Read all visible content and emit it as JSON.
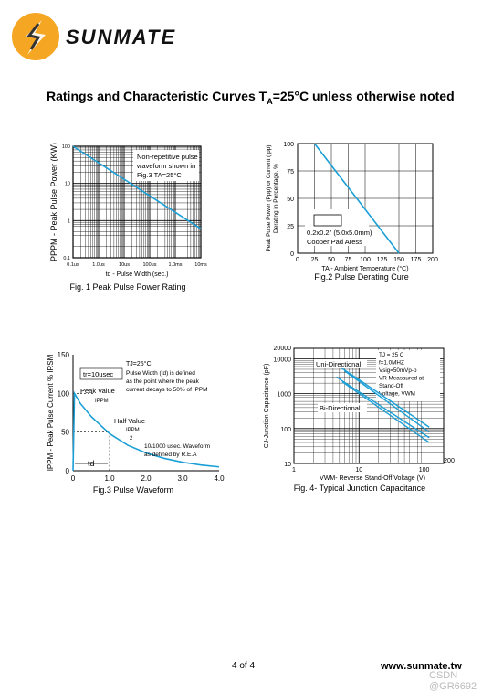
{
  "brand": {
    "name": "SUNMATE"
  },
  "heading": {
    "prefix": "Ratings and Characteristic Curves T",
    "sub": "A",
    "suffix": "=25°C unless otherwise noted"
  },
  "footer": {
    "page": "4 of  4",
    "url": "www.sunmate.tw",
    "watermark": "CSDN @GR6692"
  },
  "colors": {
    "curve": "#1a9fd6",
    "grid": "#000000"
  },
  "chart_data": [
    {
      "type": "line",
      "scale": "log-log",
      "title": "Fig. 1 Peak Pulse Power Rating",
      "xlabel": "td - Pulse Width (sec.)",
      "ylabel": "PPPM - Peak Pulse Power (KW)",
      "x_ticks": [
        "0.1us",
        "1.0us",
        "10us",
        "100us",
        "1.0ms",
        "10ms"
      ],
      "y_ticks": [
        "100",
        "10",
        "1",
        "0.1"
      ],
      "xlim": [
        1e-07,
        0.01
      ],
      "ylim": [
        0.1,
        100
      ],
      "annotation": [
        "Non-repetitive pulse",
        "waveform shown in",
        "Fig.3 TA=25°C"
      ],
      "series": [
        {
          "x": [
            1e-07,
            0.01
          ],
          "y": [
            100,
            0.6
          ]
        }
      ]
    },
    {
      "type": "line",
      "title": "Fig.2 Pulse Derating Cure",
      "xlabel": "TA - Ambient Temperature (°C)",
      "ylabel": [
        "Peak Pulse Power (Ppp) or Current (Ipp)",
        "Derating in Percentage, %"
      ],
      "x_ticks": [
        "0",
        "25",
        "50",
        "75",
        "100",
        "125",
        "150",
        "175",
        "200"
      ],
      "y_ticks": [
        "0",
        "25",
        "50",
        "75",
        "100"
      ],
      "xlim": [
        0,
        200
      ],
      "ylim": [
        0,
        100
      ],
      "annotation": [
        "0.2x0.2\" (5.0x5.0mm)",
        "Cooper Pad Aress"
      ],
      "series": [
        {
          "x": [
            25,
            150
          ],
          "y": [
            100,
            0
          ]
        }
      ]
    },
    {
      "type": "line",
      "title": "Fig.3 Pulse Waveform",
      "ylabel": "IPPM - Peak Pulse Current % IRSM",
      "x_ticks": [
        "0",
        "1.0",
        "2.0",
        "3.0",
        "4.0"
      ],
      "y_ticks": [
        "0",
        "50",
        "100",
        "150"
      ],
      "xlim": [
        0,
        4
      ],
      "ylim": [
        0,
        150
      ],
      "labels": {
        "tj": "TJ=25°C",
        "tr": "tr=10usec",
        "pulse_def": [
          "Pulse Width (td) is defined",
          "as the point where the peak",
          "current decays to 50% of IPPM"
        ],
        "peak_value": "Peak Value",
        "ippm": "IPPM",
        "half_value": "Half Value",
        "ippm_half": "IPPM",
        "half_den": "2",
        "waveform": [
          "10/1000 usec. Waveform",
          "as defined by R.E.A"
        ],
        "td": "td"
      },
      "series": [
        {
          "x": [
            0,
            0.04,
            0.2,
            0.5,
            1.0,
            1.5,
            2.0,
            2.5,
            3.0,
            3.5,
            4.0
          ],
          "y": [
            0,
            100,
            87,
            70,
            48,
            33,
            23,
            16,
            11,
            7.5,
            5
          ]
        }
      ]
    },
    {
      "type": "line",
      "scale": "log-log",
      "title": "Fig. 4- Typical Junction Capacitance",
      "xlabel": "VWM- Reverse Stand-Off Voltage (V)",
      "ylabel": "CJ-Junction Capacitance (pF)",
      "x_ticks": [
        "1",
        "10",
        "100",
        "200"
      ],
      "y_ticks": [
        "20000",
        "10000",
        "1000",
        "100",
        "10"
      ],
      "xlim": [
        1,
        200
      ],
      "ylim": [
        10,
        20000
      ],
      "annotation": [
        "TJ = 25 C",
        "f=1.0MHZ",
        "Vsig=50mVp-p",
        "VR  Measaured at",
        "Stand-Off",
        "Voltage, VWM"
      ],
      "labels": {
        "uni": "Uni-Directional",
        "bi": "Bi-Directional"
      },
      "series": [
        {
          "name": "Uni-Directional",
          "x": [
            5,
            120
          ],
          "y": [
            6000,
            110
          ]
        },
        {
          "name": "Uni-Directional",
          "x": [
            6,
            120
          ],
          "y": [
            4500,
            80
          ]
        },
        {
          "name": "Bi-Directional",
          "x": [
            4.5,
            120
          ],
          "y": [
            3000,
            55
          ]
        },
        {
          "name": "Bi-Directional",
          "x": [
            5.5,
            120
          ],
          "y": [
            2200,
            40
          ]
        }
      ]
    }
  ]
}
